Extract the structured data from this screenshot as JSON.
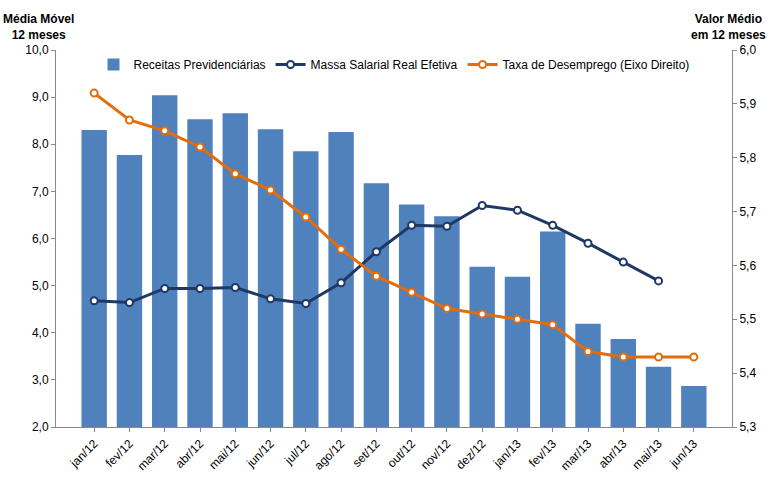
{
  "chart_data": {
    "type": "bar",
    "ylabel": "Média Móvel\n12 meses",
    "y2label": "Valor Médio\nem 12 meses",
    "categories": [
      "jan/12",
      "fev/12",
      "mar/12",
      "abr/12",
      "mai/12",
      "jun/12",
      "jul/12",
      "ago/12",
      "set/12",
      "out/12",
      "nov/12",
      "dez/12",
      "jan/13",
      "fev/13",
      "mar/13",
      "abr/13",
      "mai/13",
      "jun/13"
    ],
    "series": [
      {
        "name": "Receitas Previdenciárias",
        "type": "bar",
        "color": "#4F81BD",
        "values": [
          8.3,
          7.77,
          9.04,
          8.53,
          8.66,
          8.32,
          7.85,
          8.26,
          7.17,
          6.72,
          6.47,
          5.4,
          5.19,
          6.15,
          4.19,
          3.87,
          3.28,
          2.87
        ]
      },
      {
        "name": "Massa Salarial Real Efetiva",
        "type": "line",
        "color": "#1F3864",
        "marker": "circle",
        "line_style": "solid",
        "values": [
          4.68,
          4.64,
          4.94,
          4.94,
          4.96,
          4.72,
          4.62,
          5.06,
          5.72,
          6.28,
          6.26,
          6.7,
          6.6,
          6.28,
          5.9,
          5.5,
          5.1,
          null
        ]
      },
      {
        "name": "Taxa de Desemprego (Eixo Direito)",
        "type": "line",
        "axis": "y2",
        "color": "#E46C0A",
        "marker": "circle",
        "line_style": "solid",
        "values": [
          5.92,
          5.87,
          5.85,
          5.82,
          5.77,
          5.74,
          5.69,
          5.63,
          5.58,
          5.55,
          5.52,
          5.51,
          5.5,
          5.49,
          5.44,
          5.43,
          5.43,
          5.43
        ]
      }
    ],
    "ylim": [
      2,
      10
    ],
    "yticks": [
      {
        "value": 2,
        "label": "2,0"
      },
      {
        "value": 3,
        "label": "3,0"
      },
      {
        "value": 4,
        "label": "4,0"
      },
      {
        "value": 5,
        "label": "5,0"
      },
      {
        "value": 6,
        "label": "6,0"
      },
      {
        "value": 7,
        "label": "7,0"
      },
      {
        "value": 8,
        "label": "8,0"
      },
      {
        "value": 9,
        "label": "9,0"
      },
      {
        "value": 10,
        "label": "10,0"
      }
    ],
    "y2lim": [
      5.3,
      6.0
    ],
    "y2ticks": [
      {
        "value": 5.3,
        "label": "5,3"
      },
      {
        "value": 5.4,
        "label": "5,4"
      },
      {
        "value": 5.5,
        "label": "5,5"
      },
      {
        "value": 5.6,
        "label": "5,6"
      },
      {
        "value": 5.7,
        "label": "5,7"
      },
      {
        "value": 5.8,
        "label": "5,8"
      },
      {
        "value": 5.9,
        "label": "5,9"
      },
      {
        "value": 6.0,
        "label": "6,0"
      }
    ],
    "grid": false,
    "legend": "top"
  }
}
